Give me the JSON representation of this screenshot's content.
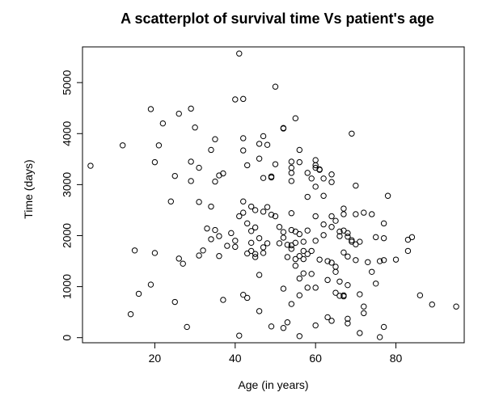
{
  "chart_data": {
    "type": "scatter",
    "title": "A scatterplot of survival time Vs patient's age",
    "xlabel": "Age (in years)",
    "ylabel": "Time (days)",
    "xlim": [
      2,
      97
    ],
    "ylim": [
      -100,
      5700
    ],
    "xticks": [
      20,
      40,
      60,
      80
    ],
    "yticks": [
      0,
      1000,
      2000,
      3000,
      4000,
      5000
    ],
    "grid": false,
    "legend": "none",
    "marker": "open-circle",
    "points": [
      [
        4,
        3370
      ],
      [
        12,
        3770
      ],
      [
        14,
        460
      ],
      [
        15,
        1710
      ],
      [
        16,
        860
      ],
      [
        19,
        4480
      ],
      [
        19,
        1040
      ],
      [
        20,
        3440
      ],
      [
        20,
        1660
      ],
      [
        21,
        3770
      ],
      [
        22,
        4200
      ],
      [
        24,
        2670
      ],
      [
        25,
        3170
      ],
      [
        25,
        700
      ],
      [
        26,
        1550
      ],
      [
        26,
        4390
      ],
      [
        27,
        1450
      ],
      [
        28,
        210
      ],
      [
        29,
        4490
      ],
      [
        29,
        3450
      ],
      [
        29,
        3070
      ],
      [
        30,
        4120
      ],
      [
        31,
        3330
      ],
      [
        31,
        2660
      ],
      [
        31,
        1610
      ],
      [
        32,
        1710
      ],
      [
        33,
        2140
      ],
      [
        34,
        3680
      ],
      [
        34,
        2570
      ],
      [
        34,
        1930
      ],
      [
        35,
        3890
      ],
      [
        35,
        3060
      ],
      [
        35,
        2110
      ],
      [
        36,
        3180
      ],
      [
        36,
        1990
      ],
      [
        36,
        1600
      ],
      [
        37,
        3220
      ],
      [
        37,
        740
      ],
      [
        38,
        1800
      ],
      [
        39,
        2050
      ],
      [
        40,
        4670
      ],
      [
        40,
        1900
      ],
      [
        40,
        1780
      ],
      [
        41,
        2380
      ],
      [
        41,
        40
      ],
      [
        41,
        5570
      ],
      [
        42,
        4680
      ],
      [
        42,
        3910
      ],
      [
        42,
        3670
      ],
      [
        42,
        2670
      ],
      [
        42,
        2450
      ],
      [
        42,
        840
      ],
      [
        43,
        3380
      ],
      [
        43,
        2240
      ],
      [
        43,
        1650
      ],
      [
        43,
        780
      ],
      [
        44,
        2570
      ],
      [
        44,
        2090
      ],
      [
        44,
        1860
      ],
      [
        44,
        1700
      ],
      [
        45,
        2500
      ],
      [
        45,
        2160
      ],
      [
        45,
        1640
      ],
      [
        45,
        1580
      ],
      [
        46,
        3510
      ],
      [
        46,
        3800
      ],
      [
        46,
        1950
      ],
      [
        46,
        1230
      ],
      [
        46,
        520
      ],
      [
        47,
        3950
      ],
      [
        47,
        3130
      ],
      [
        47,
        2470
      ],
      [
        47,
        1770
      ],
      [
        47,
        1660
      ],
      [
        48,
        3780
      ],
      [
        48,
        2560
      ],
      [
        48,
        1850
      ],
      [
        49,
        3160
      ],
      [
        49,
        3140
      ],
      [
        49,
        2410
      ],
      [
        49,
        220
      ],
      [
        50,
        4920
      ],
      [
        50,
        3400
      ],
      [
        50,
        2380
      ],
      [
        51,
        2170
      ],
      [
        51,
        1850
      ],
      [
        52,
        4100
      ],
      [
        52,
        4110
      ],
      [
        52,
        2070
      ],
      [
        52,
        1960
      ],
      [
        52,
        960
      ],
      [
        52,
        190
      ],
      [
        53,
        1820
      ],
      [
        53,
        1580
      ],
      [
        53,
        300
      ],
      [
        54,
        3450
      ],
      [
        54,
        3330
      ],
      [
        54,
        3230
      ],
      [
        54,
        3070
      ],
      [
        54,
        2440
      ],
      [
        54,
        2110
      ],
      [
        54,
        1810
      ],
      [
        54,
        1740
      ],
      [
        54,
        660
      ],
      [
        55,
        4300
      ],
      [
        55,
        2080
      ],
      [
        55,
        1860
      ],
      [
        55,
        1540
      ],
      [
        55,
        1410
      ],
      [
        56,
        3680
      ],
      [
        56,
        3440
      ],
      [
        56,
        2030
      ],
      [
        56,
        1600
      ],
      [
        56,
        1160
      ],
      [
        56,
        830
      ],
      [
        56,
        30
      ],
      [
        57,
        1880
      ],
      [
        57,
        1700
      ],
      [
        57,
        1540
      ],
      [
        57,
        1260
      ],
      [
        58,
        3230
      ],
      [
        58,
        2760
      ],
      [
        58,
        2100
      ],
      [
        58,
        1640
      ],
      [
        58,
        980
      ],
      [
        59,
        3120
      ],
      [
        59,
        1700
      ],
      [
        59,
        1250
      ],
      [
        60,
        3480
      ],
      [
        60,
        3380
      ],
      [
        60,
        3330
      ],
      [
        60,
        2960
      ],
      [
        60,
        2380
      ],
      [
        60,
        1900
      ],
      [
        60,
        980
      ],
      [
        60,
        240
      ],
      [
        61,
        3300
      ],
      [
        61,
        3290
      ],
      [
        61,
        1530
      ],
      [
        62,
        3120
      ],
      [
        62,
        2780
      ],
      [
        62,
        2220
      ],
      [
        62,
        2010
      ],
      [
        63,
        1500
      ],
      [
        63,
        1130
      ],
      [
        63,
        400
      ],
      [
        64,
        3200
      ],
      [
        64,
        3050
      ],
      [
        64,
        2380
      ],
      [
        64,
        2170
      ],
      [
        64,
        1470
      ],
      [
        64,
        330
      ],
      [
        65,
        2290
      ],
      [
        65,
        1390
      ],
      [
        65,
        1290
      ],
      [
        65,
        880
      ],
      [
        66,
        2080
      ],
      [
        66,
        1990
      ],
      [
        66,
        1100
      ],
      [
        66,
        820
      ],
      [
        67,
        2530
      ],
      [
        67,
        2420
      ],
      [
        67,
        2100
      ],
      [
        67,
        1670
      ],
      [
        67,
        830
      ],
      [
        67,
        810
      ],
      [
        68,
        2050
      ],
      [
        68,
        1980
      ],
      [
        68,
        1590
      ],
      [
        68,
        1030
      ],
      [
        68,
        370
      ],
      [
        68,
        280
      ],
      [
        69,
        4000
      ],
      [
        69,
        1910
      ],
      [
        69,
        1880
      ],
      [
        70,
        2980
      ],
      [
        70,
        2420
      ],
      [
        70,
        1830
      ],
      [
        70,
        1520
      ],
      [
        71,
        1880
      ],
      [
        71,
        850
      ],
      [
        71,
        90
      ],
      [
        72,
        2450
      ],
      [
        72,
        610
      ],
      [
        72,
        480
      ],
      [
        73,
        1480
      ],
      [
        74,
        1290
      ],
      [
        74,
        2420
      ],
      [
        75,
        1970
      ],
      [
        75,
        1060
      ],
      [
        76,
        1500
      ],
      [
        76,
        10
      ],
      [
        77,
        2240
      ],
      [
        77,
        1950
      ],
      [
        77,
        1520
      ],
      [
        77,
        210
      ],
      [
        78,
        2780
      ],
      [
        80,
        1530
      ],
      [
        83,
        1700
      ],
      [
        83,
        1920
      ],
      [
        84,
        1970
      ],
      [
        86,
        830
      ],
      [
        89,
        650
      ],
      [
        95,
        610
      ]
    ]
  }
}
